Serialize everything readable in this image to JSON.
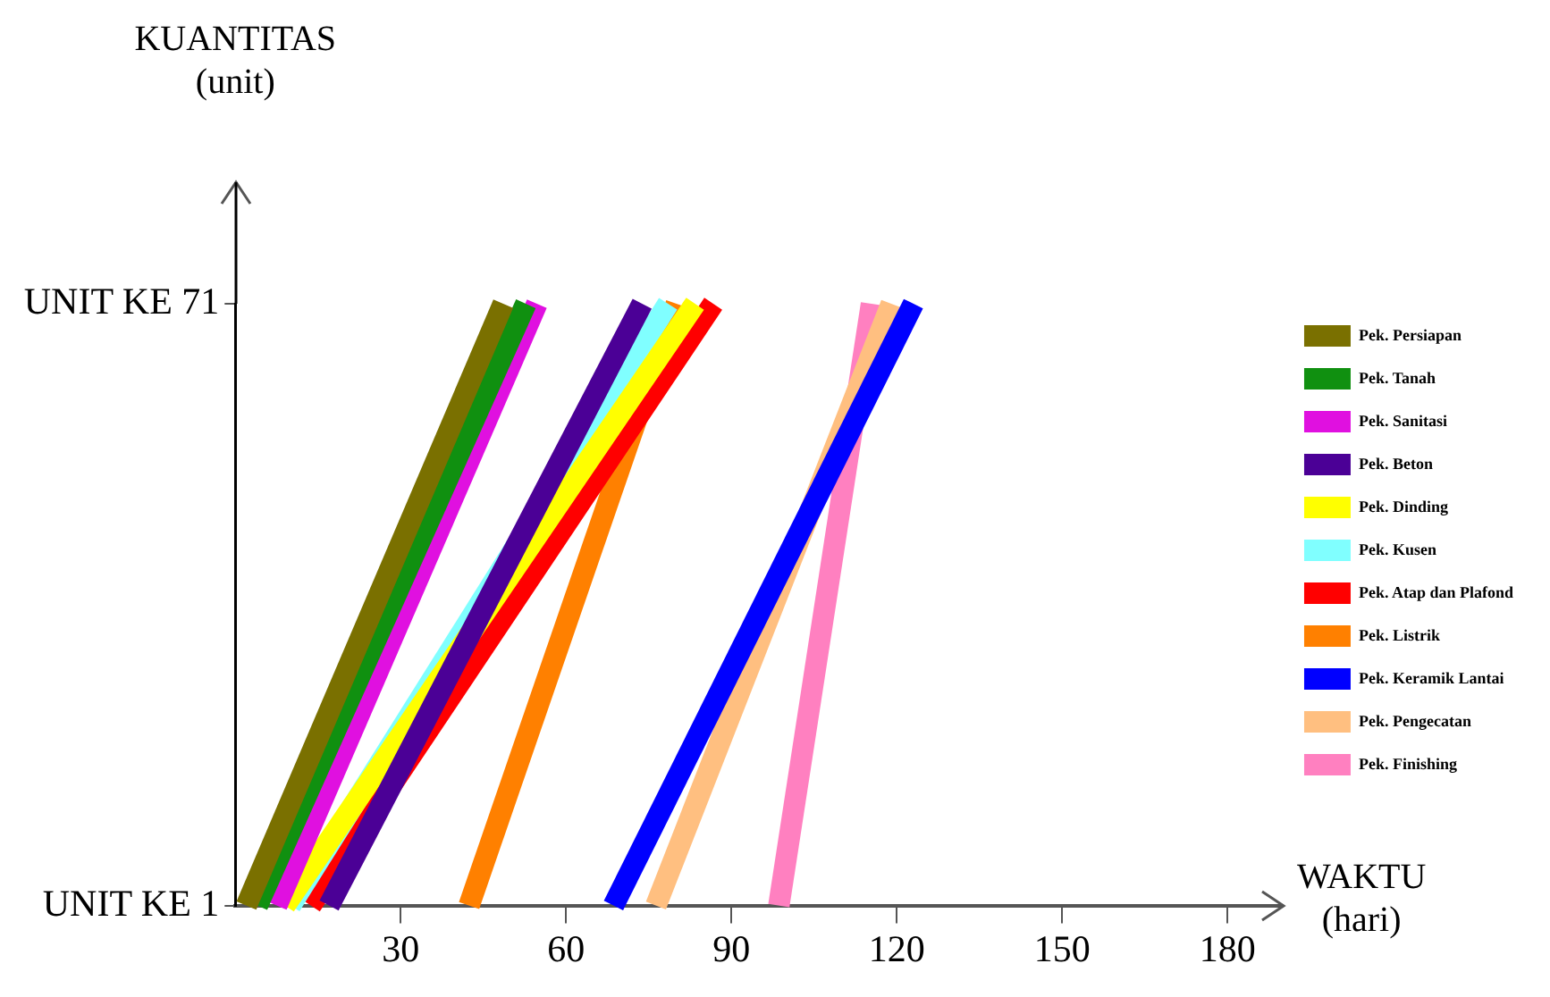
{
  "chart_data": {
    "type": "line",
    "orientation": "horizontal",
    "xlabel": "WAKTU\n(hari)",
    "ylabel": "KUANTITAS\n(unit)",
    "categories": [
      "UNIT KE 71",
      "UNIT KE 1"
    ],
    "xlim": [
      0,
      190
    ],
    "xticks": [
      30,
      60,
      90,
      120,
      150,
      180
    ],
    "grid": false,
    "legend": "right",
    "marker": "none",
    "line_style": "solid",
    "series": [
      {
        "name": "Pek. Persiapan",
        "color": "#7a7000",
        "values": [
          48.6,
          2
        ]
      },
      {
        "name": "Pek. Tanah",
        "color": "#109010",
        "values": [
          52.7,
          4
        ]
      },
      {
        "name": "Pek. Sanitasi",
        "color": "#e010e0",
        "values": [
          54.7,
          7.5
        ]
      },
      {
        "name": "Pek. Beton",
        "color": "#4b0096",
        "values": [
          73.8,
          17
        ]
      },
      {
        "name": "Pek. Dinding",
        "color": "#ffff00",
        "values": [
          83.4,
          9
        ]
      },
      {
        "name": "Pek. Kusen",
        "color": "#80ffff",
        "values": [
          78.5,
          10
        ]
      },
      {
        "name": "Pek. Atap dan Plafond",
        "color": "#ff0000",
        "values": [
          86.7,
          13.7
        ]
      },
      {
        "name": "Pek. Listrik",
        "color": "#ff8000",
        "values": [
          80,
          42.4
        ]
      },
      {
        "name": "Pek. Keramik Lantai",
        "color": "#0000ff",
        "values": [
          123,
          68.6
        ]
      },
      {
        "name": "Pek. Pengecatan",
        "color": "#ffbf80",
        "values": [
          119,
          76.3
        ]
      },
      {
        "name": "Pek. Finishing",
        "color": "#ff80c0",
        "values": [
          115.4,
          98.6
        ]
      }
    ]
  }
}
